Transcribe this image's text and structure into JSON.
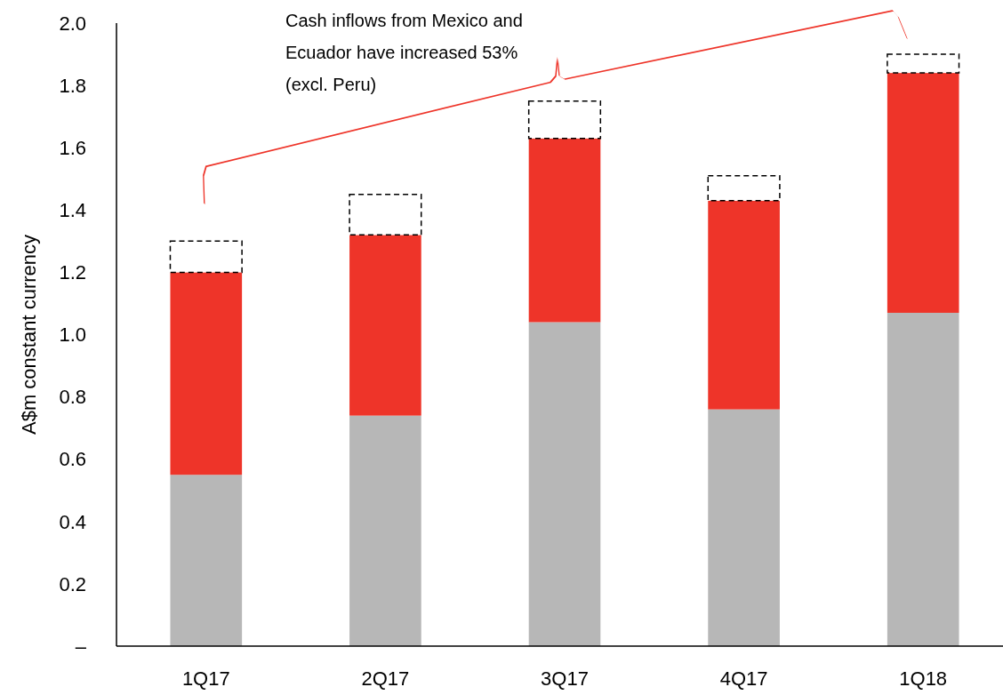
{
  "chart_data": {
    "type": "bar",
    "stacked": true,
    "ylabel": "A$m constant currency",
    "categories": [
      "1Q17",
      "2Q17",
      "3Q17",
      "4Q17",
      "1Q18"
    ],
    "series": [
      {
        "color": "#b7b7b7",
        "values": [
          0.55,
          0.74,
          1.04,
          0.76,
          1.07
        ]
      },
      {
        "color": "#ee3429",
        "values": [
          0.65,
          0.58,
          0.59,
          0.67,
          0.77
        ]
      },
      {
        "color": "#ffffff",
        "line_style": "dashed",
        "values": [
          0.1,
          0.13,
          0.12,
          0.08,
          0.06
        ]
      }
    ],
    "ylim": [
      0,
      2.0
    ],
    "yticks": [
      {
        "value": 0,
        "label": "–"
      },
      {
        "value": 0.2,
        "label": "0.2"
      },
      {
        "value": 0.4,
        "label": "0.4"
      },
      {
        "value": 0.6,
        "label": "0.6"
      },
      {
        "value": 0.8,
        "label": "0.8"
      },
      {
        "value": 1.0,
        "label": "1.0"
      },
      {
        "value": 1.2,
        "label": "1.2"
      },
      {
        "value": 1.4,
        "label": "1.4"
      },
      {
        "value": 1.6,
        "label": "1.6"
      },
      {
        "value": 1.8,
        "label": "1.8"
      },
      {
        "value": 2.0,
        "label": "2.0"
      }
    ],
    "grid": false,
    "annotations": [
      "Cash inflows from Mexico and Ecuador have increased 53% (excl. Peru)"
    ]
  }
}
